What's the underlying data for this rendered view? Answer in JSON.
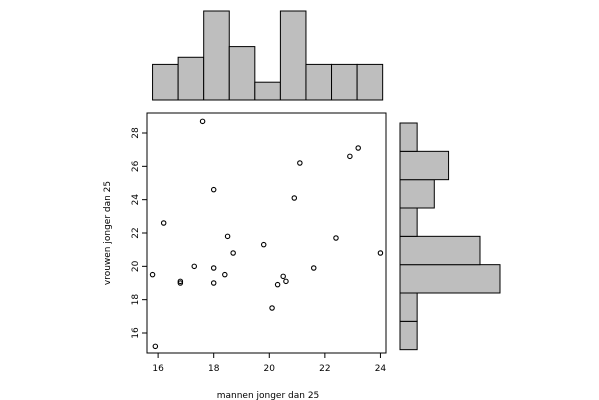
{
  "chart_data": {
    "type": "scatter",
    "title": "",
    "xlabel": "mannen jonger dan 25",
    "ylabel": "vrouwen jonger dan 25",
    "xlim": [
      15.6,
      24.2
    ],
    "ylim": [
      14.8,
      29.2
    ],
    "x_ticks": [
      16,
      18,
      20,
      22,
      24
    ],
    "y_ticks": [
      16,
      18,
      20,
      22,
      24,
      26,
      28
    ],
    "grid": false,
    "colors": {
      "hist_fill": "#bebebe",
      "stroke": "#000000",
      "background": "#ffffff"
    },
    "points": [
      {
        "x": 15.9,
        "y": 15.2
      },
      {
        "x": 15.8,
        "y": 19.5
      },
      {
        "x": 16.2,
        "y": 22.6
      },
      {
        "x": 16.8,
        "y": 19.1
      },
      {
        "x": 16.8,
        "y": 19.0
      },
      {
        "x": 17.3,
        "y": 20.0
      },
      {
        "x": 17.6,
        "y": 28.7
      },
      {
        "x": 18.0,
        "y": 24.6
      },
      {
        "x": 18.0,
        "y": 19.9
      },
      {
        "x": 18.0,
        "y": 19.0
      },
      {
        "x": 18.4,
        "y": 19.5
      },
      {
        "x": 18.5,
        "y": 21.8
      },
      {
        "x": 18.7,
        "y": 20.8
      },
      {
        "x": 19.8,
        "y": 21.3
      },
      {
        "x": 20.1,
        "y": 17.5
      },
      {
        "x": 20.3,
        "y": 18.9
      },
      {
        "x": 20.5,
        "y": 19.4
      },
      {
        "x": 20.6,
        "y": 19.1
      },
      {
        "x": 20.9,
        "y": 24.1
      },
      {
        "x": 21.1,
        "y": 26.2
      },
      {
        "x": 21.6,
        "y": 19.9
      },
      {
        "x": 22.4,
        "y": 21.7
      },
      {
        "x": 22.9,
        "y": 26.6
      },
      {
        "x": 23.2,
        "y": 27.1
      },
      {
        "x": 24.0,
        "y": 20.8
      }
    ],
    "x_histogram": {
      "breaks": [
        15.8,
        16.72,
        17.64,
        18.56,
        19.48,
        20.4,
        21.32,
        22.24,
        23.16,
        24.08
      ],
      "heights": [
        1.0,
        1.2,
        2.5,
        1.5,
        0.5,
        2.5,
        1.0,
        1.0,
        1.0
      ]
    },
    "y_histogram": {
      "breaks": [
        15.0,
        16.7,
        18.4,
        20.1,
        21.8,
        23.5,
        25.2,
        26.9,
        28.6
      ],
      "heights": [
        0.6,
        0.6,
        3.5,
        2.8,
        0.6,
        1.2,
        1.7,
        0.6
      ]
    }
  }
}
